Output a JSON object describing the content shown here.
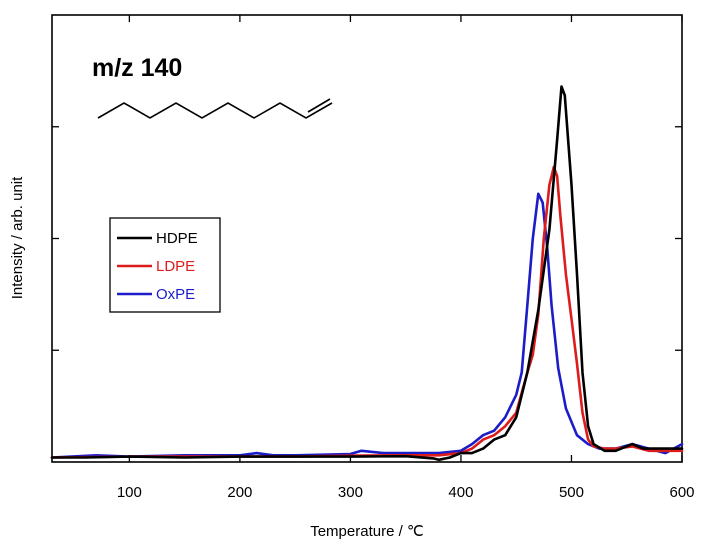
{
  "chart_data": {
    "type": "line",
    "xlabel": "Temperature / ℃",
    "ylabel": "Intensity / arb. unit",
    "xlim": [
      30,
      600
    ],
    "ylim": [
      0,
      1
    ],
    "xticks": [
      100,
      200,
      300,
      400,
      500,
      600
    ],
    "yticks": [
      0.25,
      0.5,
      0.75
    ],
    "show_y_tick_labels": false,
    "annotation": "m/z 140",
    "legend_position": "center-left",
    "series": [
      {
        "name": "HDPE",
        "color": "#000000",
        "points": [
          [
            30,
            0.01
          ],
          [
            60,
            0.01
          ],
          [
            100,
            0.012
          ],
          [
            150,
            0.01
          ],
          [
            200,
            0.012
          ],
          [
            250,
            0.012
          ],
          [
            300,
            0.012
          ],
          [
            350,
            0.013
          ],
          [
            375,
            0.008
          ],
          [
            380,
            0.005
          ],
          [
            390,
            0.01
          ],
          [
            400,
            0.02
          ],
          [
            410,
            0.02
          ],
          [
            420,
            0.03
          ],
          [
            430,
            0.05
          ],
          [
            440,
            0.06
          ],
          [
            450,
            0.1
          ],
          [
            460,
            0.2
          ],
          [
            470,
            0.34
          ],
          [
            480,
            0.52
          ],
          [
            487,
            0.72
          ],
          [
            491,
            0.84
          ],
          [
            494,
            0.82
          ],
          [
            500,
            0.62
          ],
          [
            505,
            0.42
          ],
          [
            510,
            0.2
          ],
          [
            515,
            0.08
          ],
          [
            520,
            0.04
          ],
          [
            530,
            0.025
          ],
          [
            540,
            0.025
          ],
          [
            555,
            0.04
          ],
          [
            565,
            0.03
          ],
          [
            575,
            0.03
          ],
          [
            585,
            0.03
          ],
          [
            600,
            0.03
          ]
        ]
      },
      {
        "name": "LDPE",
        "color": "#dd1c1c",
        "points": [
          [
            30,
            0.01
          ],
          [
            100,
            0.012
          ],
          [
            150,
            0.012
          ],
          [
            200,
            0.012
          ],
          [
            250,
            0.012
          ],
          [
            300,
            0.014
          ],
          [
            350,
            0.015
          ],
          [
            380,
            0.015
          ],
          [
            400,
            0.02
          ],
          [
            410,
            0.03
          ],
          [
            420,
            0.05
          ],
          [
            430,
            0.06
          ],
          [
            440,
            0.08
          ],
          [
            450,
            0.11
          ],
          [
            460,
            0.2
          ],
          [
            465,
            0.24
          ],
          [
            470,
            0.33
          ],
          [
            475,
            0.5
          ],
          [
            480,
            0.62
          ],
          [
            484,
            0.66
          ],
          [
            487,
            0.64
          ],
          [
            490,
            0.55
          ],
          [
            495,
            0.42
          ],
          [
            500,
            0.32
          ],
          [
            505,
            0.22
          ],
          [
            510,
            0.11
          ],
          [
            515,
            0.05
          ],
          [
            520,
            0.035
          ],
          [
            530,
            0.03
          ],
          [
            540,
            0.03
          ],
          [
            555,
            0.035
          ],
          [
            570,
            0.025
          ],
          [
            585,
            0.025
          ],
          [
            600,
            0.025
          ]
        ]
      },
      {
        "name": "OxPE",
        "color": "#1c1cc8",
        "points": [
          [
            30,
            0.01
          ],
          [
            70,
            0.015
          ],
          [
            100,
            0.012
          ],
          [
            150,
            0.015
          ],
          [
            200,
            0.015
          ],
          [
            215,
            0.02
          ],
          [
            230,
            0.015
          ],
          [
            250,
            0.015
          ],
          [
            300,
            0.018
          ],
          [
            310,
            0.025
          ],
          [
            330,
            0.02
          ],
          [
            350,
            0.02
          ],
          [
            380,
            0.02
          ],
          [
            400,
            0.025
          ],
          [
            410,
            0.04
          ],
          [
            420,
            0.06
          ],
          [
            430,
            0.07
          ],
          [
            440,
            0.1
          ],
          [
            450,
            0.15
          ],
          [
            455,
            0.2
          ],
          [
            460,
            0.35
          ],
          [
            465,
            0.5
          ],
          [
            470,
            0.6
          ],
          [
            474,
            0.58
          ],
          [
            478,
            0.48
          ],
          [
            482,
            0.35
          ],
          [
            488,
            0.21
          ],
          [
            495,
            0.12
          ],
          [
            505,
            0.06
          ],
          [
            515,
            0.04
          ],
          [
            525,
            0.03
          ],
          [
            540,
            0.03
          ],
          [
            555,
            0.04
          ],
          [
            570,
            0.03
          ],
          [
            585,
            0.02
          ],
          [
            600,
            0.04
          ]
        ]
      }
    ]
  }
}
